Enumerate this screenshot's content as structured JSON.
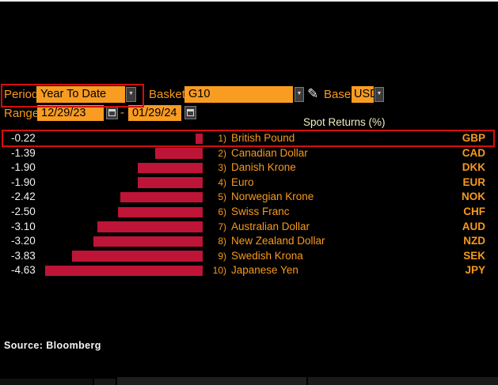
{
  "controls": {
    "period": {
      "label": "Period",
      "value": "Year To Date"
    },
    "basket": {
      "label": "Basket",
      "value": "G10"
    },
    "base": {
      "label": "Base",
      "value": "USD"
    },
    "range": {
      "label": "Range",
      "start": "12/29/23",
      "separator": "-",
      "end": "01/29/24"
    }
  },
  "icons": {
    "dropdown_arrow": "▼",
    "pencil": "✎",
    "calendar": "calendar-grid"
  },
  "chart_data": {
    "type": "bar",
    "orientation": "horizontal, bars extend left from right baseline",
    "title": "Spot Returns (%)",
    "categories": [
      "British Pound",
      "Canadian Dollar",
      "Danish Krone",
      "Euro",
      "Norwegian Krone",
      "Swiss Franc",
      "Australian Dollar",
      "New Zealand Dollar",
      "Swedish Krona",
      "Japanese Yen"
    ],
    "rank_labels": [
      "1)",
      "2)",
      "3)",
      "4)",
      "5)",
      "6)",
      "7)",
      "8)",
      "9)",
      "10)"
    ],
    "codes": [
      "GBP",
      "CAD",
      "DKK",
      "EUR",
      "NOK",
      "CHF",
      "AUD",
      "NZD",
      "SEK",
      "JPY"
    ],
    "values": [
      -0.22,
      -1.39,
      -1.9,
      -1.9,
      -2.42,
      -2.5,
      -3.1,
      -3.2,
      -3.83,
      -4.63
    ],
    "value_labels": [
      "-0.22",
      "-1.39",
      "-1.90",
      "-1.90",
      "-2.42",
      "-2.50",
      "-3.10",
      "-3.20",
      "-3.83",
      "-4.63"
    ],
    "xlim": [
      -5,
      0
    ],
    "grid": false,
    "legend": null,
    "bar_color": "#be1437",
    "highlight_index": 0
  },
  "colors": {
    "background": "#000000",
    "amber_field": "#f89c22",
    "amber_text": "#f8991d",
    "bar_red": "#be1437",
    "annotation_red": "#d60d0d",
    "title_cream": "#f1edc2",
    "value_white": "#f2f2f2"
  },
  "source": "Source: Bloomberg"
}
